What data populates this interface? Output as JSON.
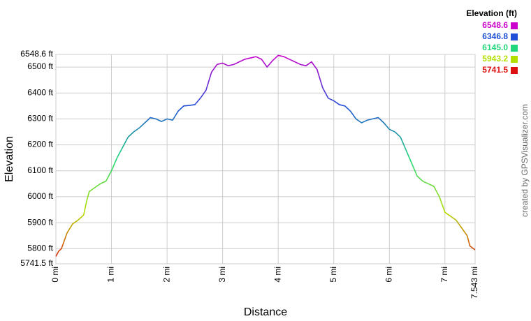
{
  "chart_data": {
    "type": "line",
    "y_axis_label": "Elevation",
    "x_axis_label": "Distance",
    "credit": "created by GPSVisualizer.com",
    "legend_title": "Elevation (ft)",
    "color_scale": [
      {
        "value": 6548.6,
        "color": "#cc00cc"
      },
      {
        "value": 6346.8,
        "color": "#1f4fd6"
      },
      {
        "value": 6145,
        "label": "6145.0",
        "color": "#1fd67a"
      },
      {
        "value": 5943.2,
        "color": "#b4e000"
      },
      {
        "value": 5741.5,
        "color": "#dd1111"
      }
    ],
    "x": [
      0,
      0.05,
      0.1,
      0.15,
      0.2,
      0.3,
      0.4,
      0.5,
      0.55,
      0.6,
      0.7,
      0.8,
      0.9,
      1.0,
      1.1,
      1.2,
      1.3,
      1.4,
      1.5,
      1.6,
      1.7,
      1.8,
      1.9,
      2.0,
      2.1,
      2.2,
      2.3,
      2.4,
      2.5,
      2.6,
      2.7,
      2.8,
      2.9,
      3.0,
      3.1,
      3.2,
      3.3,
      3.4,
      3.5,
      3.6,
      3.7,
      3.8,
      3.9,
      4.0,
      4.1,
      4.2,
      4.3,
      4.4,
      4.5,
      4.6,
      4.7,
      4.8,
      4.9,
      5.0,
      5.1,
      5.2,
      5.3,
      5.4,
      5.5,
      5.6,
      5.7,
      5.8,
      5.9,
      6.0,
      6.1,
      6.2,
      6.3,
      6.4,
      6.5,
      6.6,
      6.7,
      6.8,
      6.9,
      7.0,
      7.1,
      7.2,
      7.3,
      7.4,
      7.45,
      7.543
    ],
    "series": [
      {
        "name": "Elevation",
        "values": [
          5770,
          5790,
          5800,
          5830,
          5860,
          5895,
          5910,
          5930,
          5980,
          6020,
          6035,
          6050,
          6060,
          6100,
          6150,
          6190,
          6230,
          6250,
          6265,
          6285,
          6305,
          6300,
          6290,
          6300,
          6295,
          6330,
          6350,
          6352,
          6355,
          6380,
          6410,
          6480,
          6510,
          6515,
          6505,
          6510,
          6520,
          6530,
          6535,
          6540,
          6530,
          6500,
          6525,
          6545,
          6540,
          6530,
          6520,
          6510,
          6505,
          6520,
          6490,
          6420,
          6380,
          6370,
          6355,
          6350,
          6330,
          6300,
          6285,
          6295,
          6300,
          6305,
          6285,
          6260,
          6250,
          6230,
          6180,
          6130,
          6080,
          6060,
          6050,
          6040,
          6000,
          5940,
          5925,
          5910,
          5880,
          5850,
          5810,
          5795
        ]
      }
    ],
    "xlim": [
      0,
      7.543
    ],
    "xticks": [
      {
        "value": 0,
        "label": "0 mi"
      },
      {
        "value": 1,
        "label": "1 mi"
      },
      {
        "value": 2,
        "label": "2 mi"
      },
      {
        "value": 3,
        "label": "3 mi"
      },
      {
        "value": 4,
        "label": "4 mi"
      },
      {
        "value": 5,
        "label": "5 mi"
      },
      {
        "value": 6,
        "label": "6 mi"
      },
      {
        "value": 7,
        "label": "7 mi"
      },
      {
        "value": 7.543,
        "label": "7.543 mi"
      }
    ],
    "ylim": [
      5741.5,
      6548.6
    ],
    "yticks": [
      {
        "value": 5741.5,
        "label": "5741.5 ft"
      },
      {
        "value": 5800,
        "label": "5800 ft"
      },
      {
        "value": 5900,
        "label": "5900 ft"
      },
      {
        "value": 6000,
        "label": "6000 ft"
      },
      {
        "value": 6100,
        "label": "6100 ft"
      },
      {
        "value": 6200,
        "label": "6200 ft"
      },
      {
        "value": 6300,
        "label": "6300 ft"
      },
      {
        "value": 6400,
        "label": "6400 ft"
      },
      {
        "value": 6500,
        "label": "6500 ft"
      },
      {
        "value": 6548.6,
        "label": "6548.6 ft"
      }
    ],
    "grid": true
  }
}
